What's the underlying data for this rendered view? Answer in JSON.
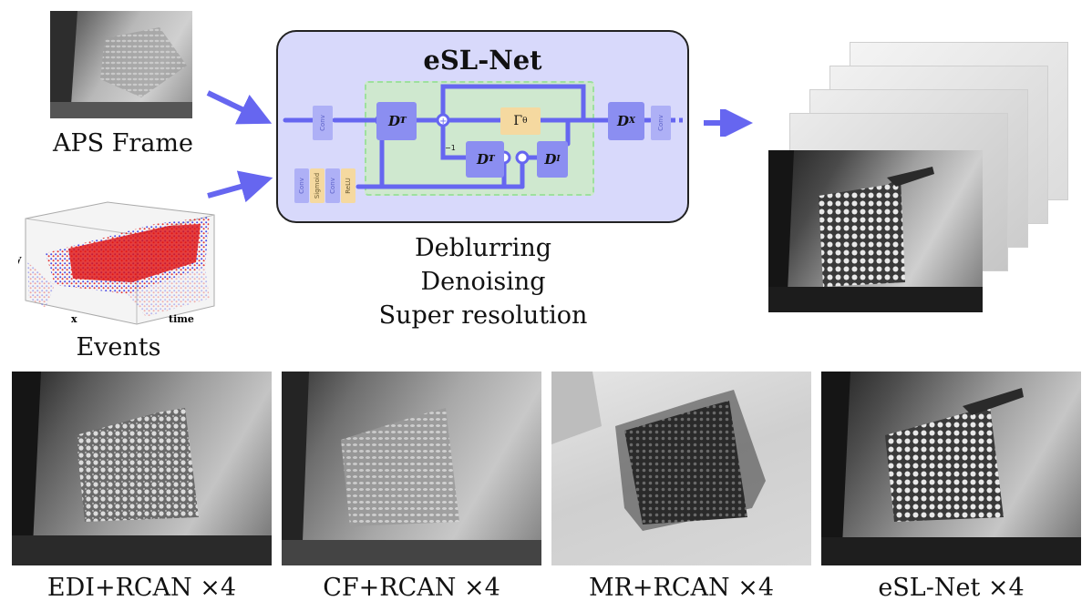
{
  "network": {
    "title": "eSL-Net",
    "blocks": {
      "conv": "Conv",
      "sigmoid": "Sigmoid",
      "relu": "ReLU",
      "dt_top": "D",
      "dt_bottom": "D",
      "transpose_sup": "T",
      "sub_i": "I",
      "di": "D",
      "dx": "D",
      "sub_x": "X",
      "gamma": "Γ",
      "sub_theta": "θ"
    },
    "sum_plus": "+",
    "minus_one": "−1"
  },
  "tasks": [
    "Deblurring",
    "Denoising",
    "Super resolution"
  ],
  "inputs": {
    "aps_label": "APS Frame",
    "events_label": "Events",
    "axis_x": "x",
    "axis_y": "y",
    "axis_time": "time"
  },
  "results": [
    {
      "label": "EDI+RCAN ×4"
    },
    {
      "label": "CF+RCAN ×4"
    },
    {
      "label": "MR+RCAN ×4"
    },
    {
      "label": "eSL-Net ×4"
    }
  ],
  "colors": {
    "arrow": "#6666f0",
    "net_bg": "#d8d9fb",
    "green_zone": "#cfe8cf",
    "operator_block": "#8b8ef1",
    "gamma_block": "#f5d9a0",
    "event_red": "#e01010",
    "event_blue": "#2a2ae0"
  }
}
